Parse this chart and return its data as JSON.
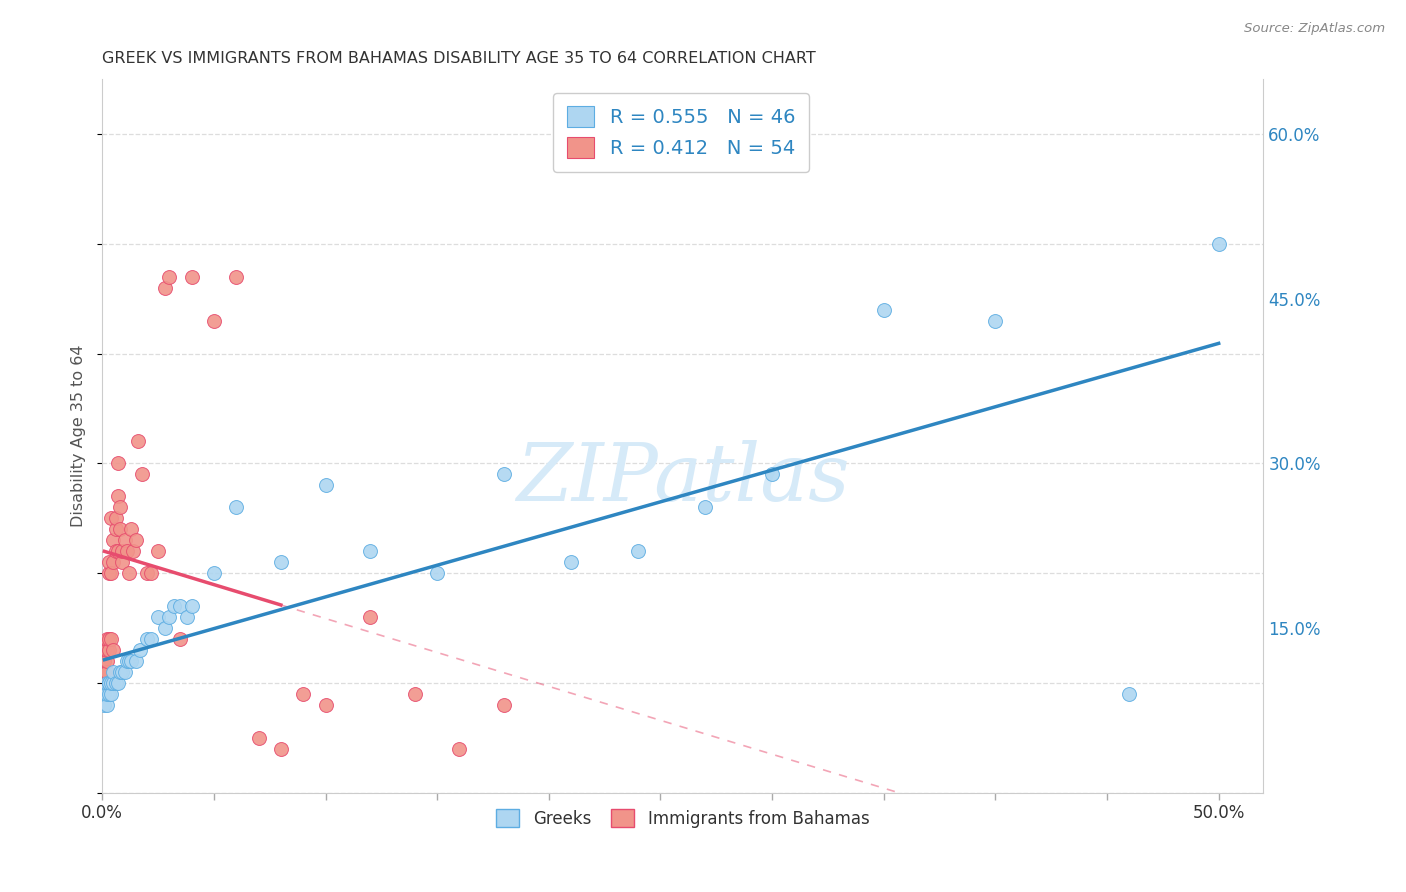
{
  "title": "GREEK VS IMMIGRANTS FROM BAHAMAS DISABILITY AGE 35 TO 64 CORRELATION CHART",
  "source": "Source: ZipAtlas.com",
  "ylabel": "Disability Age 35 to 64",
  "xlim": [
    0.0,
    0.52
  ],
  "ylim": [
    0.0,
    0.65
  ],
  "xtick_positions": [
    0.0,
    0.05,
    0.1,
    0.15,
    0.2,
    0.25,
    0.3,
    0.35,
    0.4,
    0.45,
    0.5
  ],
  "xticklabels": [
    "0.0%",
    "",
    "",
    "",
    "",
    "",
    "",
    "",
    "",
    "",
    "50.0%"
  ],
  "ytick_positions": [
    0.15,
    0.3,
    0.45,
    0.6
  ],
  "yticklabels": [
    "15.0%",
    "30.0%",
    "45.0%",
    "60.0%"
  ],
  "R_greek": 0.555,
  "N_greek": 46,
  "R_bahamas": 0.412,
  "N_bahamas": 54,
  "greek_color": "#AED6F1",
  "bahamas_color": "#F1948A",
  "greek_edge_color": "#5DADE2",
  "bahamas_edge_color": "#E74C6E",
  "greek_line_color": "#2E86C1",
  "bahamas_line_color": "#E74C6E",
  "diagonal_color": "#DDBBBB",
  "axis_label_color": "#2E86C1",
  "watermark_color": "#D6EAF8",
  "greek_x": [
    0.001,
    0.001,
    0.002,
    0.002,
    0.002,
    0.003,
    0.003,
    0.003,
    0.004,
    0.004,
    0.005,
    0.005,
    0.006,
    0.007,
    0.008,
    0.009,
    0.01,
    0.011,
    0.012,
    0.013,
    0.015,
    0.017,
    0.02,
    0.022,
    0.025,
    0.028,
    0.03,
    0.032,
    0.035,
    0.038,
    0.04,
    0.05,
    0.06,
    0.08,
    0.1,
    0.12,
    0.15,
    0.18,
    0.21,
    0.24,
    0.27,
    0.3,
    0.35,
    0.4,
    0.46,
    0.5
  ],
  "greek_y": [
    0.08,
    0.09,
    0.08,
    0.09,
    0.1,
    0.09,
    0.1,
    0.1,
    0.09,
    0.1,
    0.1,
    0.11,
    0.1,
    0.1,
    0.11,
    0.11,
    0.11,
    0.12,
    0.12,
    0.12,
    0.12,
    0.13,
    0.14,
    0.14,
    0.16,
    0.15,
    0.16,
    0.17,
    0.17,
    0.16,
    0.17,
    0.2,
    0.26,
    0.21,
    0.28,
    0.22,
    0.2,
    0.29,
    0.21,
    0.22,
    0.26,
    0.29,
    0.44,
    0.43,
    0.09,
    0.5
  ],
  "bahamas_x": [
    0.001,
    0.001,
    0.001,
    0.001,
    0.001,
    0.002,
    0.002,
    0.002,
    0.002,
    0.003,
    0.003,
    0.003,
    0.003,
    0.004,
    0.004,
    0.004,
    0.005,
    0.005,
    0.005,
    0.006,
    0.006,
    0.006,
    0.007,
    0.007,
    0.007,
    0.008,
    0.008,
    0.009,
    0.009,
    0.01,
    0.011,
    0.012,
    0.013,
    0.014,
    0.015,
    0.016,
    0.018,
    0.02,
    0.022,
    0.025,
    0.028,
    0.03,
    0.035,
    0.04,
    0.05,
    0.06,
    0.07,
    0.08,
    0.09,
    0.1,
    0.12,
    0.14,
    0.16,
    0.18
  ],
  "bahamas_y": [
    0.1,
    0.11,
    0.12,
    0.12,
    0.13,
    0.11,
    0.12,
    0.13,
    0.14,
    0.13,
    0.14,
    0.2,
    0.21,
    0.14,
    0.2,
    0.25,
    0.21,
    0.23,
    0.13,
    0.22,
    0.24,
    0.25,
    0.22,
    0.27,
    0.3,
    0.24,
    0.26,
    0.21,
    0.22,
    0.23,
    0.22,
    0.2,
    0.24,
    0.22,
    0.23,
    0.32,
    0.29,
    0.2,
    0.2,
    0.22,
    0.46,
    0.47,
    0.14,
    0.47,
    0.43,
    0.47,
    0.05,
    0.04,
    0.09,
    0.08,
    0.16,
    0.09,
    0.04,
    0.08
  ]
}
